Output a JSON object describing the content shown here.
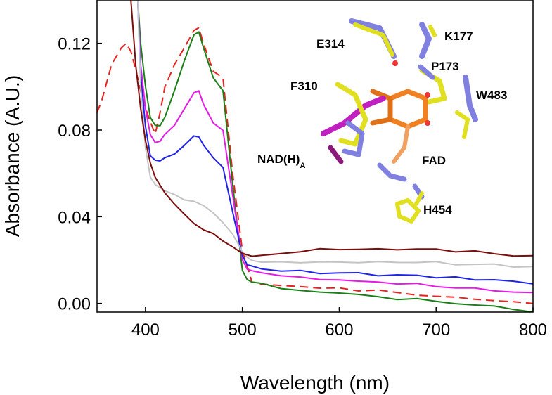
{
  "chart_data": {
    "type": "line",
    "title": "",
    "xlabel": "Wavelength (nm)",
    "ylabel": "Absorbance (A.U.)",
    "xlim": [
      350,
      800
    ],
    "ylim": [
      -0.004,
      0.14
    ],
    "xticks": [
      400,
      500,
      600,
      700,
      800
    ],
    "yticks": [
      0.0,
      0.04,
      0.08,
      0.12
    ],
    "xtick_labels": [
      "400",
      "500",
      "600",
      "700",
      "800"
    ],
    "ytick_labels": [
      "0.00",
      "0.04",
      "0.08",
      "0.12"
    ],
    "grid": false,
    "legend": "none",
    "series": [
      {
        "color": "#e8231f",
        "dash": true,
        "x": [
          350,
          355,
          365,
          375,
          380,
          385,
          390,
          395,
          400,
          405,
          410,
          415,
          420,
          430,
          440,
          450,
          455,
          460,
          470,
          480,
          490,
          500,
          510,
          520,
          540,
          560,
          580,
          600,
          620,
          640,
          660,
          680,
          700,
          720,
          740,
          760,
          780,
          800
        ],
        "y": [
          0.088,
          0.094,
          0.11,
          0.118,
          0.12,
          0.116,
          0.108,
          0.098,
          0.09,
          0.084,
          0.078,
          0.088,
          0.1,
          0.11,
          0.118,
          0.126,
          0.127,
          0.12,
          0.107,
          0.104,
          0.06,
          0.024,
          0.01,
          0.009,
          0.008,
          0.008,
          0.007,
          0.007,
          0.006,
          0.006,
          0.005,
          0.004,
          0.003,
          0.003,
          0.002,
          0.001,
          0.001,
          0.0
        ]
      },
      {
        "color": "#1a7f17",
        "dash": false,
        "x": [
          392,
          395,
          400,
          405,
          410,
          415,
          420,
          430,
          440,
          450,
          455,
          460,
          470,
          480,
          490,
          500,
          505,
          510,
          520,
          540,
          560,
          580,
          600,
          620,
          640,
          660,
          680,
          700,
          720,
          740,
          760,
          770,
          780,
          800
        ],
        "y": [
          0.14,
          0.12,
          0.1,
          0.086,
          0.082,
          0.082,
          0.086,
          0.098,
          0.112,
          0.124,
          0.125,
          0.118,
          0.104,
          0.098,
          0.055,
          0.015,
          0.011,
          0.01,
          0.009,
          0.007,
          0.006,
          0.005,
          0.005,
          0.004,
          0.003,
          0.002,
          0.002,
          0.001,
          0.0,
          -0.001,
          -0.001,
          -0.002,
          -0.003,
          -0.004
        ]
      },
      {
        "color": "#e619e6",
        "dash": false,
        "x": [
          392,
          395,
          400,
          405,
          410,
          415,
          420,
          430,
          440,
          450,
          455,
          460,
          470,
          480,
          490,
          500,
          505,
          510,
          520,
          540,
          560,
          580,
          600,
          620,
          640,
          660,
          680,
          700,
          720,
          740,
          760,
          780,
          800
        ],
        "y": [
          0.14,
          0.11,
          0.09,
          0.078,
          0.074,
          0.075,
          0.078,
          0.082,
          0.09,
          0.097,
          0.098,
          0.092,
          0.083,
          0.08,
          0.05,
          0.02,
          0.016,
          0.015,
          0.014,
          0.013,
          0.012,
          0.011,
          0.011,
          0.01,
          0.01,
          0.009,
          0.009,
          0.008,
          0.007,
          0.007,
          0.006,
          0.005,
          0.005
        ]
      },
      {
        "color": "#1f23e8",
        "dash": false,
        "x": [
          392,
          395,
          400,
          405,
          410,
          415,
          420,
          430,
          440,
          450,
          455,
          460,
          470,
          480,
          490,
          500,
          505,
          510,
          520,
          540,
          560,
          580,
          600,
          620,
          640,
          660,
          680,
          700,
          720,
          740,
          760,
          780,
          800
        ],
        "y": [
          0.14,
          0.105,
          0.082,
          0.068,
          0.066,
          0.066,
          0.067,
          0.069,
          0.073,
          0.077,
          0.077,
          0.073,
          0.067,
          0.063,
          0.042,
          0.022,
          0.018,
          0.017,
          0.016,
          0.015,
          0.015,
          0.014,
          0.014,
          0.014,
          0.013,
          0.013,
          0.013,
          0.012,
          0.012,
          0.011,
          0.011,
          0.01,
          0.009
        ]
      },
      {
        "color": "#c4c4c4",
        "dash": false,
        "x": [
          392,
          395,
          400,
          405,
          410,
          420,
          430,
          440,
          450,
          460,
          470,
          480,
          490,
          500,
          505,
          510,
          520,
          540,
          560,
          580,
          600,
          620,
          640,
          660,
          680,
          700,
          720,
          740,
          760,
          780,
          800
        ],
        "y": [
          0.14,
          0.1,
          0.072,
          0.058,
          0.055,
          0.052,
          0.05,
          0.048,
          0.047,
          0.045,
          0.042,
          0.037,
          0.032,
          0.024,
          0.021,
          0.02,
          0.019,
          0.019,
          0.019,
          0.019,
          0.019,
          0.019,
          0.019,
          0.019,
          0.019,
          0.019,
          0.018,
          0.018,
          0.018,
          0.017,
          0.017
        ]
      },
      {
        "color": "#7b0d0d",
        "dash": false,
        "x": [
          385,
          390,
          395,
          400,
          405,
          410,
          420,
          430,
          440,
          450,
          460,
          470,
          480,
          490,
          500,
          510,
          520,
          540,
          560,
          580,
          600,
          620,
          640,
          660,
          680,
          700,
          720,
          740,
          760,
          780,
          800
        ],
        "y": [
          0.14,
          0.11,
          0.09,
          0.075,
          0.065,
          0.058,
          0.051,
          0.046,
          0.041,
          0.037,
          0.034,
          0.032,
          0.029,
          0.026,
          0.023,
          0.022,
          0.022,
          0.023,
          0.024,
          0.025,
          0.025,
          0.025,
          0.025,
          0.025,
          0.025,
          0.025,
          0.024,
          0.024,
          0.023,
          0.022,
          0.022
        ]
      }
    ],
    "annotations": [
      {
        "text": "E314"
      },
      {
        "text": "K177"
      },
      {
        "text": "P173"
      },
      {
        "text": "F310"
      },
      {
        "text": "W483"
      },
      {
        "text": "NAD(H)",
        "sub": "A"
      },
      {
        "text": "FAD"
      },
      {
        "text": "H454"
      }
    ]
  }
}
